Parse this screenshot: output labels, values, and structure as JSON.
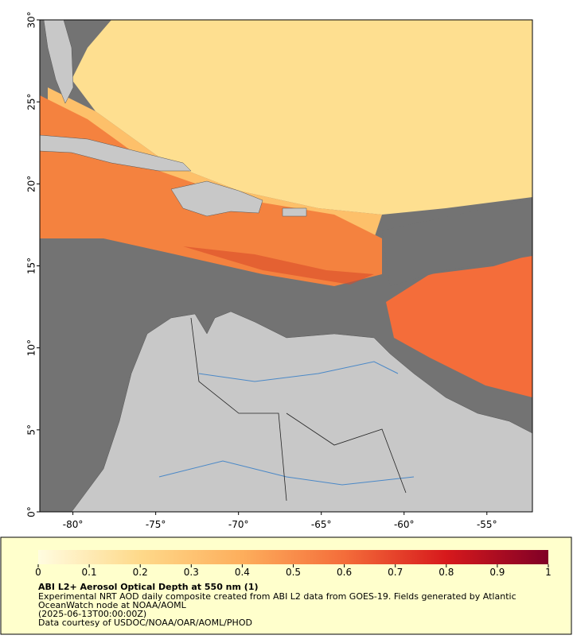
{
  "map": {
    "xlim": [
      -82,
      -52.25
    ],
    "ylim": [
      0,
      30
    ],
    "xticks": [
      {
        "value": -80,
        "label": "-80°"
      },
      {
        "value": -75,
        "label": "-75°"
      },
      {
        "value": -70,
        "label": "-70°"
      },
      {
        "value": -65,
        "label": "-65°"
      },
      {
        "value": -60,
        "label": "-60°"
      },
      {
        "value": -55,
        "label": "-55°"
      }
    ],
    "yticks": [
      {
        "value": 0,
        "label": "0°"
      },
      {
        "value": 5,
        "label": "5°"
      },
      {
        "value": 10,
        "label": "10°"
      },
      {
        "value": 15,
        "label": "15°"
      },
      {
        "value": 20,
        "label": "20°"
      },
      {
        "value": 25,
        "label": "25°"
      },
      {
        "value": 30,
        "label": "30°"
      }
    ]
  },
  "colorbar": {
    "lim": [
      0,
      1
    ],
    "ticks": [
      0,
      0.1,
      0.2,
      0.3,
      0.4,
      0.5,
      0.6,
      0.7,
      0.8,
      0.9,
      1
    ],
    "colors": [
      "#fffce0",
      "#fed98a",
      "#fdae5c",
      "#f46d3a",
      "#d7191c",
      "#800026"
    ]
  },
  "caption": {
    "title": "ABI L2+ Aerosol Optical Depth at 550 nm (1)",
    "lines": [
      "Experimental NRT AOD daily composite created from ABI L2 data from GOES-19. Fields generated by Atlantic",
      "OceanWatch node at NOAA/AOML",
      "(2025-06-13T00:00:00Z)",
      "Data courtesy of USDOC/NOAA/OAR/AOML/PHOD"
    ]
  }
}
